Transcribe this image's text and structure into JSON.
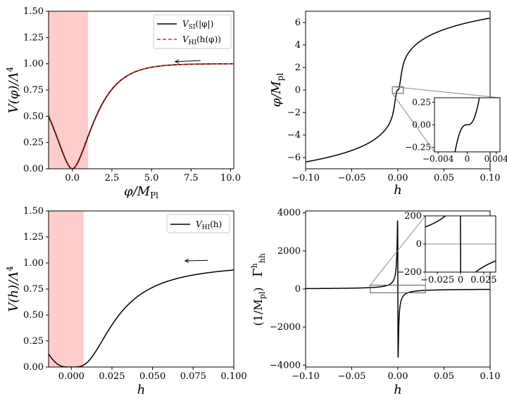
{
  "chart_data": [
    {
      "type": "line",
      "panel": "top-left",
      "xlabel_base": "φ/M",
      "xlabel_sub": "Pl",
      "ylabel_base": "V(φ)/Λ",
      "ylabel_sup": "4",
      "xlim": [
        -1.5,
        10.2
      ],
      "ylim": [
        0,
        1.5
      ],
      "xticks": [
        0.0,
        2.5,
        5.0,
        7.5,
        10.0
      ],
      "xtick_labels": [
        "0.0",
        "2.5",
        "5.0",
        "7.5",
        "10.0"
      ],
      "yticks": [
        0.0,
        0.25,
        0.5,
        0.75,
        1.0,
        1.25,
        1.5
      ],
      "ytick_labels": [
        "0.00",
        "0.25",
        "0.50",
        "0.75",
        "1.00",
        "1.25",
        "1.50"
      ],
      "shaded_region": {
        "x0": -1.5,
        "x1": 1.0,
        "color": "#ffcccc"
      },
      "arrow": {
        "from": [
          8.1,
          1.03
        ],
        "to": [
          6.5,
          1.02
        ]
      },
      "legend_position": "upper-right",
      "series": [
        {
          "name_base": "V",
          "name_sub": "SI",
          "name_arg": "(|φ|)",
          "color": "#000000",
          "dash": "solid",
          "model": "starobinsky",
          "shift": 0.0
        },
        {
          "name_base": "V",
          "name_sub": "HI",
          "name_arg": "(h(φ))",
          "color": "#e8221c",
          "dash": "dashed",
          "model": "starobinsky",
          "shift": -0.03
        }
      ]
    },
    {
      "type": "line",
      "panel": "top-right",
      "xlabel_base": "h",
      "ylabel_base": "φ/M",
      "ylabel_sub": "pl",
      "xlim": [
        -0.1,
        0.1
      ],
      "ylim": [
        -7,
        7
      ],
      "xticks": [
        -0.1,
        -0.05,
        0.0,
        0.05,
        0.1
      ],
      "xtick_labels": [
        "−0.10",
        "−0.05",
        "0.00",
        "0.05",
        "0.10"
      ],
      "yticks": [
        -6,
        -4,
        -2,
        0,
        2,
        4,
        6
      ],
      "ytick_labels": [
        "−6",
        "−4",
        "−2",
        "0",
        "2",
        "4",
        "6"
      ],
      "zoom_box": {
        "x0": -0.006,
        "x1": 0.006,
        "y0": -0.3,
        "y1": 0.3
      },
      "series": [
        {
          "name": "φ(h)",
          "color": "#000000",
          "model": "field_map"
        }
      ],
      "inset": {
        "xlim": [
          -0.0045,
          0.0045
        ],
        "ylim": [
          -0.3,
          0.3
        ],
        "xticks": [
          -0.004,
          0.0,
          0.004
        ],
        "xtick_labels": [
          "−0.004",
          "0",
          "0.004"
        ],
        "yticks": [
          -0.25,
          0.0,
          0.25
        ],
        "ytick_labels": [
          "−0.25",
          "0.00",
          "0.25"
        ]
      }
    },
    {
      "type": "line",
      "panel": "bottom-left",
      "xlabel_base": "h",
      "ylabel_base": "V(h)/Λ",
      "ylabel_sup": "4",
      "xlim": [
        -0.014,
        0.1
      ],
      "ylim": [
        0,
        1.5
      ],
      "xticks": [
        0.0,
        0.025,
        0.05,
        0.075,
        0.1
      ],
      "xtick_labels": [
        "0.000",
        "0.025",
        "0.050",
        "0.075",
        "0.100"
      ],
      "yticks": [
        0.0,
        0.25,
        0.5,
        0.75,
        1.0,
        1.25,
        1.5
      ],
      "ytick_labels": [
        "0.00",
        "0.25",
        "0.50",
        "0.75",
        "1.00",
        "1.25",
        "1.50"
      ],
      "shaded_region": {
        "x0": -0.014,
        "x1": 0.0075,
        "color": "#ffcccc"
      },
      "arrow": {
        "from": [
          0.084,
          1.025
        ],
        "to": [
          0.07,
          1.02
        ]
      },
      "legend_position": "upper-right",
      "series": [
        {
          "name_base": "V",
          "name_sub": "HI",
          "name_arg": "(h)",
          "color": "#000000",
          "dash": "solid",
          "model": "higgs"
        }
      ]
    },
    {
      "type": "line",
      "panel": "bottom-right",
      "xlabel_base": "h",
      "ylabel_base": "Γ",
      "ylabel_sup": "h",
      "ylabel_sub": "hh",
      "ylabel_unit_base": "(1/M",
      "ylabel_unit_sub": "pl",
      "ylabel_unit_close": ")",
      "xlim": [
        -0.1,
        0.1
      ],
      "ylim": [
        -4100,
        4100
      ],
      "xticks": [
        -0.1,
        -0.05,
        0.0,
        0.05,
        0.1
      ],
      "xtick_labels": [
        "−0.10",
        "−0.05",
        "0.00",
        "0.05",
        "0.10"
      ],
      "yticks": [
        -4000,
        -2000,
        0,
        2000,
        4000
      ],
      "ytick_labels": [
        "−4000",
        "−2000",
        "0",
        "2000",
        "4000"
      ],
      "zoom_box": {
        "x0": -0.03,
        "x1": 0.03,
        "y0": -200,
        "y1": 200
      },
      "series": [
        {
          "name": "Γ^h_hh",
          "color": "#000000",
          "model": "christoffel"
        }
      ],
      "inset": {
        "xlim": [
          -0.038,
          0.038
        ],
        "ylim": [
          -200,
          200
        ],
        "xticks": [
          -0.025,
          0.0,
          0.025
        ],
        "xtick_labels": [
          "−0.025",
          "0",
          "0.025"
        ],
        "yticks": [
          -200,
          0,
          200
        ],
        "ytick_labels": [
          "−200",
          "0",
          "200"
        ]
      }
    }
  ]
}
